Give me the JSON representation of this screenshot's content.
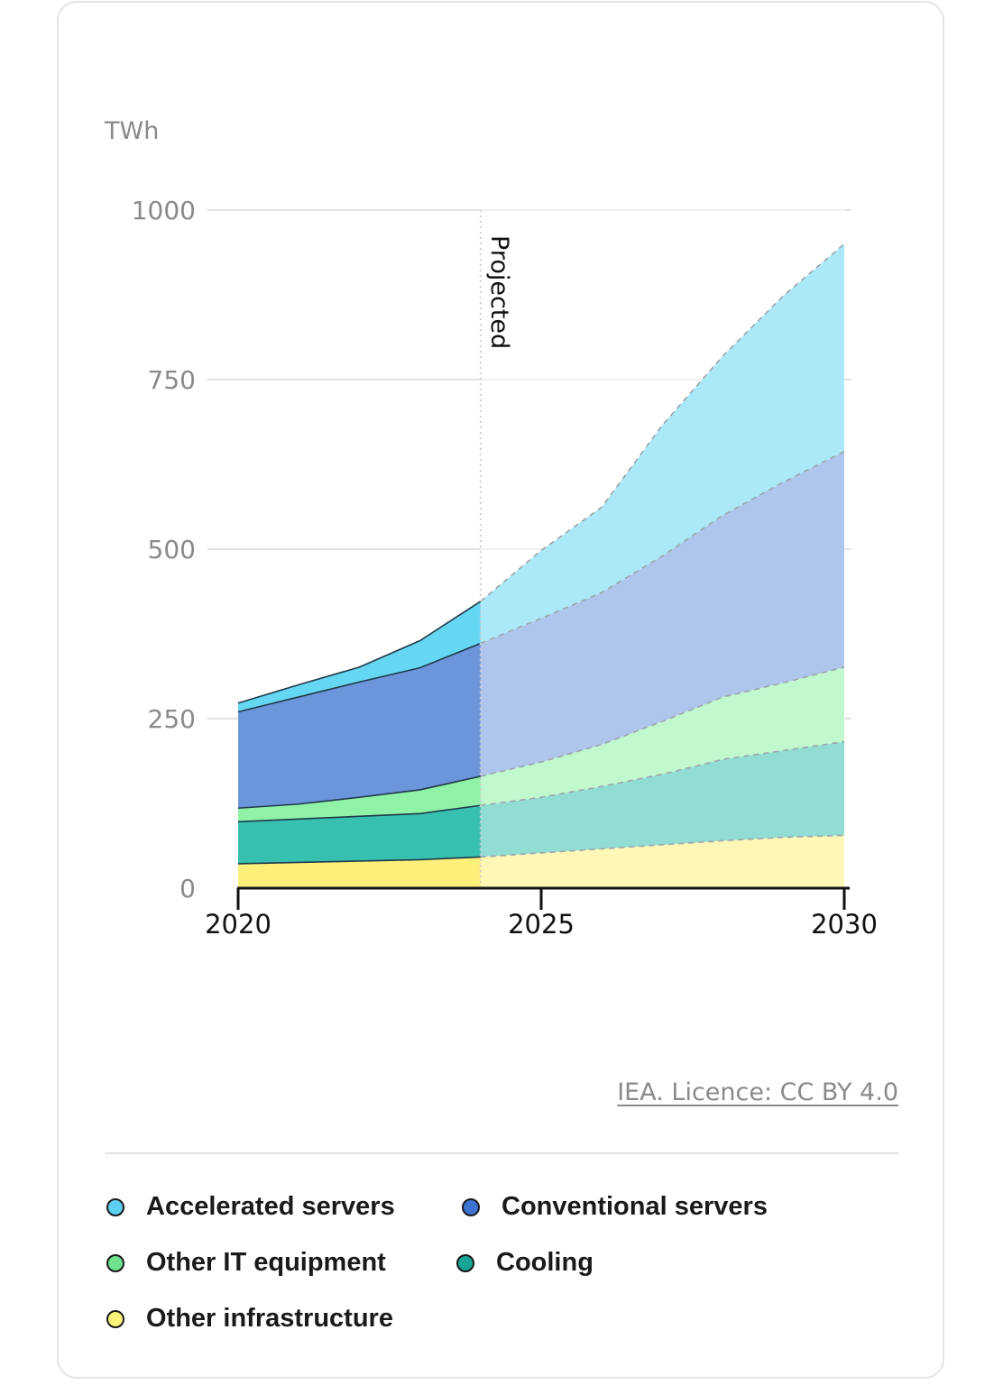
{
  "chart_data": {
    "type": "area",
    "stacked": true,
    "ylabel": "TWh",
    "ylim": [
      0,
      1000
    ],
    "yticks": [
      0,
      250,
      500,
      750,
      1000
    ],
    "xlim": [
      2020,
      2030
    ],
    "xticks": [
      2020,
      2025,
      2030
    ],
    "x": [
      2020,
      2021,
      2022,
      2023,
      2024,
      2025,
      2026,
      2027,
      2028,
      2029,
      2030
    ],
    "projection_start": 2024,
    "annotation": "Projected",
    "grid": true,
    "legend_position": "bottom",
    "series": [
      {
        "name": "Other infrastructure",
        "color": "#fdf07a",
        "values": [
          36,
          38,
          40,
          42,
          46,
          52,
          58,
          64,
          70,
          75,
          78
        ]
      },
      {
        "name": "Cooling",
        "color": "#37bfb0",
        "values": [
          62,
          64,
          66,
          68,
          76,
          82,
          92,
          104,
          120,
          128,
          138
        ]
      },
      {
        "name": "Other IT equipment",
        "color": "#8ff2a6",
        "values": [
          20,
          22,
          28,
          35,
          43,
          52,
          62,
          78,
          92,
          100,
          110
        ]
      },
      {
        "name": "Conventional servers",
        "color": "#6c96dc",
        "values": [
          142,
          158,
          170,
          180,
          196,
          212,
          224,
          244,
          268,
          296,
          318
        ]
      },
      {
        "name": "Accelerated servers",
        "color": "#66d7f3",
        "values": [
          13,
          18,
          22,
          40,
          62,
          100,
          126,
          193,
          235,
          275,
          306
        ]
      }
    ]
  },
  "footer": {
    "credit": "IEA. Licence: CC BY 4.0"
  },
  "legend": [
    {
      "label": "Accelerated servers",
      "color": "#5dd0f2"
    },
    {
      "label": "Conventional servers",
      "color": "#3f73d2"
    },
    {
      "label": "Other IT equipment",
      "color": "#6fe38e"
    },
    {
      "label": "Cooling",
      "color": "#16a596"
    },
    {
      "label": "Other infrastructure",
      "color": "#fdf27a"
    }
  ]
}
